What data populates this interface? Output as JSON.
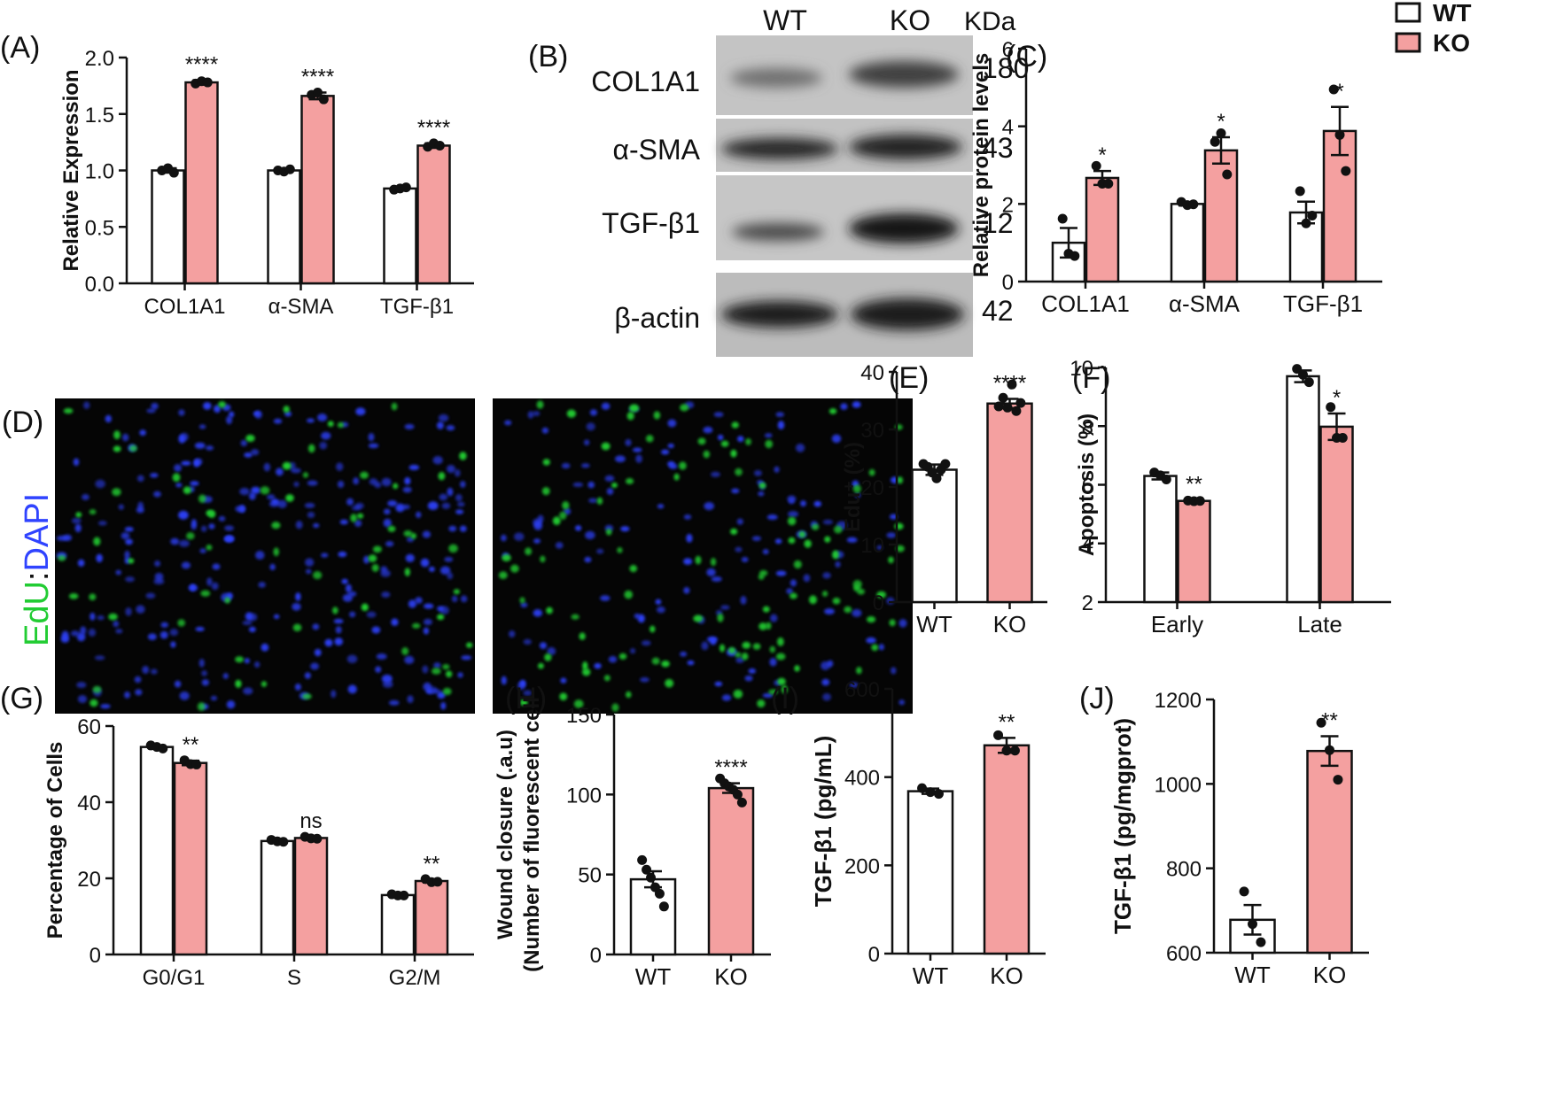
{
  "colors": {
    "wt": "#ffffff",
    "ko": "#f4a0a0",
    "stroke": "#111111",
    "edu": "#22cc33",
    "dapi": "#2f43ff",
    "panel_bg": "#050505"
  },
  "legend": {
    "items": [
      {
        "label": "WT",
        "color": "#ffffff"
      },
      {
        "label": "KO",
        "color": "#f4a0a0"
      }
    ]
  },
  "chart_data": [
    {
      "id": "A",
      "panel_label": "(A)",
      "type": "bar",
      "ylabel": "Relative Expression",
      "ylim": [
        0,
        2.0
      ],
      "yticks": [
        "0.0",
        "0.5",
        "1.0",
        "1.5",
        "2.0"
      ],
      "categories": [
        "COL1A1",
        "α-SMA",
        "TGF-β1"
      ],
      "series": [
        {
          "name": "WT",
          "values": [
            1.0,
            1.0,
            0.84
          ]
        },
        {
          "name": "KO",
          "values": [
            1.78,
            1.66,
            1.22
          ]
        }
      ],
      "errors": [
        [
          0.02,
          0.01,
          0.01
        ],
        [
          0.02,
          0.03,
          0.02
        ]
      ],
      "points": [
        [
          [
            1.0,
            1.02,
            0.98
          ],
          [
            1.0,
            0.99,
            1.01
          ],
          [
            0.83,
            0.84,
            0.85
          ]
        ],
        [
          [
            1.77,
            1.79,
            1.78
          ],
          [
            1.67,
            1.69,
            1.63
          ],
          [
            1.21,
            1.24,
            1.22
          ]
        ]
      ],
      "annotations": [
        "****",
        "****",
        "****"
      ]
    },
    {
      "id": "C",
      "panel_label": "(C)",
      "type": "bar",
      "ylabel": "Relative protein levels",
      "ylim": [
        0,
        6
      ],
      "yticks": [
        "0",
        "2",
        "4",
        "6"
      ],
      "categories": [
        "COL1A1",
        "α-SMA",
        "TGF-β1"
      ],
      "series": [
        {
          "name": "WT",
          "values": [
            1.0,
            2.0,
            1.78
          ]
        },
        {
          "name": "KO",
          "values": [
            2.67,
            3.38,
            3.88
          ]
        }
      ],
      "errors": [
        [
          0.38,
          0.04,
          0.28
        ],
        [
          0.18,
          0.34,
          0.62
        ]
      ],
      "points": [
        [
          [
            1.62,
            0.72,
            0.66
          ],
          [
            2.05,
            1.97,
            1.99
          ],
          [
            2.33,
            1.5,
            1.7
          ]
        ],
        [
          [
            2.98,
            2.52,
            2.52
          ],
          [
            3.6,
            3.82,
            2.76
          ],
          [
            4.95,
            3.78,
            2.85
          ]
        ]
      ],
      "annotations": [
        "*",
        "*",
        "*"
      ]
    },
    {
      "id": "E",
      "panel_label": "(E)",
      "type": "bar",
      "ylabel": "Edu⁺ (%)",
      "ylim": [
        0,
        40
      ],
      "yticks": [
        "0",
        "10",
        "20",
        "30",
        "40"
      ],
      "categories": [
        "WT",
        "KO"
      ],
      "values": [
        23.0,
        34.5
      ],
      "errors": [
        0.9,
        0.8
      ],
      "points": [
        [
          24.0,
          23.5,
          22.5,
          21.5,
          23.0,
          24.0
        ],
        [
          34.0,
          35.5,
          33.8,
          37.8,
          33.2,
          34.6
        ]
      ],
      "annotations": [
        "",
        "****"
      ]
    },
    {
      "id": "F",
      "panel_label": "(F)",
      "type": "bar",
      "ylabel": "Apoptosis (%)",
      "ylim": [
        2,
        10
      ],
      "yticks": [
        "2",
        "4",
        "6",
        "8",
        "10"
      ],
      "categories": [
        "Early",
        "Late"
      ],
      "series": [
        {
          "name": "WT",
          "values": [
            6.3,
            9.7
          ]
        },
        {
          "name": "KO",
          "values": [
            5.45,
            7.98
          ]
        }
      ],
      "errors": [
        [
          0.12,
          0.2
        ],
        [
          0.03,
          0.45
        ]
      ],
      "points": [
        [
          [
            6.42,
            6.32,
            6.18
          ],
          [
            9.95,
            9.75,
            9.5
          ]
        ],
        [
          [
            5.46,
            5.44,
            5.45
          ],
          [
            8.65,
            7.6,
            7.6
          ]
        ]
      ],
      "annotations": [
        "**",
        "*"
      ]
    },
    {
      "id": "G",
      "panel_label": "(G)",
      "type": "bar",
      "ylabel": "Percentage of Cells",
      "ylim": [
        0,
        60
      ],
      "yticks": [
        "0",
        "20",
        "40",
        "60"
      ],
      "categories": [
        "G0/G1",
        "S",
        "G2/M"
      ],
      "series": [
        {
          "name": "WT",
          "values": [
            54.5,
            29.8,
            15.6
          ]
        },
        {
          "name": "KO",
          "values": [
            50.3,
            30.6,
            19.3
          ]
        }
      ],
      "errors": [
        [
          0.4,
          0.4,
          0.3
        ],
        [
          0.6,
          0.3,
          0.4
        ]
      ],
      "points": [
        [
          [
            54.9,
            54.5,
            54.1
          ],
          [
            30.1,
            29.7,
            29.6
          ],
          [
            15.8,
            15.5,
            15.5
          ]
        ],
        [
          [
            51.0,
            50.0,
            49.9
          ],
          [
            30.9,
            30.5,
            30.4
          ],
          [
            19.8,
            19.0,
            19.1
          ]
        ]
      ],
      "annotations": [
        "**",
        "ns",
        "**"
      ]
    },
    {
      "id": "H",
      "panel_label": "(H)",
      "type": "bar",
      "ylabel_lines": [
        "Wound closure (.a.u)",
        "(Number of fluorescent cell"
      ],
      "ylim": [
        0,
        150
      ],
      "yticks": [
        "0",
        "50",
        "100",
        "150"
      ],
      "categories": [
        "WT",
        "KO"
      ],
      "values": [
        47,
        104
      ],
      "errors": [
        5,
        3
      ],
      "points": [
        [
          59,
          53,
          48,
          42,
          38,
          30
        ],
        [
          110,
          107,
          105,
          103,
          100,
          95
        ]
      ],
      "annotations": [
        "",
        "****"
      ]
    },
    {
      "id": "I",
      "panel_label": "(I)",
      "type": "bar",
      "ylabel": "TGF-β1 (pg/mL)",
      "ylim": [
        0,
        600
      ],
      "yticks": [
        "0",
        "200",
        "400",
        "600"
      ],
      "categories": [
        "WT",
        "KO"
      ],
      "values": [
        368,
        472
      ],
      "errors": [
        6,
        17
      ],
      "points": [
        [
          375,
          366,
          362
        ],
        [
          495,
          460,
          460
        ]
      ],
      "annotations": [
        "",
        "**"
      ]
    },
    {
      "id": "J",
      "panel_label": "(J)",
      "type": "bar",
      "ylabel": "TGF-β1 (pg/mgprot)",
      "ylim": [
        600,
        1200
      ],
      "yticks": [
        "600",
        "800",
        "1000",
        "1200"
      ],
      "categories": [
        "WT",
        "KO"
      ],
      "values": [
        678,
        1078
      ],
      "errors": [
        35,
        35
      ],
      "points": [
        [
          745,
          668,
          625
        ],
        [
          1145,
          1080,
          1010
        ]
      ],
      "annotations": [
        "",
        "**"
      ]
    }
  ],
  "western": {
    "panel_label": "(B)",
    "header": [
      "WT",
      "KO"
    ],
    "kda_label": "KDa",
    "rows": [
      {
        "label": "COL1A1",
        "kda": "180"
      },
      {
        "label": "α-SMA",
        "kda": "43"
      },
      {
        "label": "TGF-β1",
        "kda": "12"
      },
      {
        "label": "β-actin",
        "kda": "42"
      }
    ]
  },
  "microscopy": {
    "panel_label": "(D)",
    "stain_edu": "EdU",
    "stain_sep": ":",
    "stain_dapi": "DAPI"
  }
}
